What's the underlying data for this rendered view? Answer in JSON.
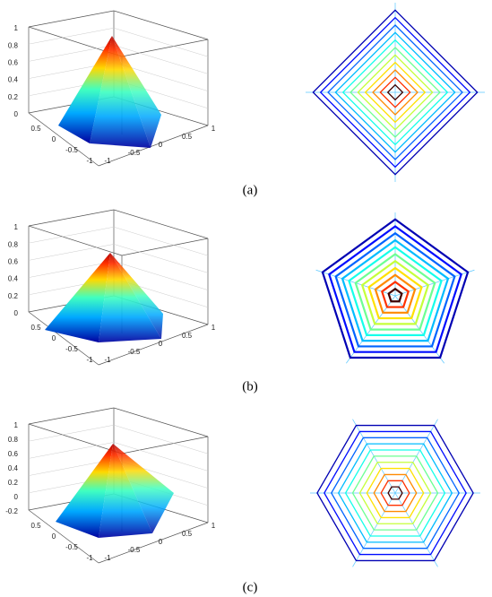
{
  "figure": {
    "panels": [
      {
        "caption": "(a)",
        "z_ticks": [
          "1",
          "0.8",
          "0.6",
          "0.4",
          "0.2",
          "0"
        ],
        "left_ticks": [
          "0.5",
          "0",
          "-0.5",
          "-1"
        ],
        "right_ticks": [
          "-1",
          "-0.5",
          "0",
          "0.5",
          "1"
        ]
      },
      {
        "caption": "(b)",
        "z_ticks": [
          "1",
          "0.8",
          "0.6",
          "0.4",
          "0.2",
          "0"
        ],
        "left_ticks": [
          "0.5",
          "0",
          "-0.5",
          "-1"
        ],
        "right_ticks": [
          "-1",
          "-0.5",
          "0",
          "0.5",
          "1"
        ]
      },
      {
        "caption": "(c)",
        "z_ticks": [
          "1",
          "0.8",
          "0.6",
          "0.4",
          "0.2",
          "0",
          "-0.2"
        ],
        "left_ticks": [
          "0.5",
          "0",
          "-0.5",
          "-1"
        ],
        "right_ticks": [
          "-1",
          "-0.5",
          "0",
          "0.5",
          "1"
        ]
      }
    ]
  }
}
